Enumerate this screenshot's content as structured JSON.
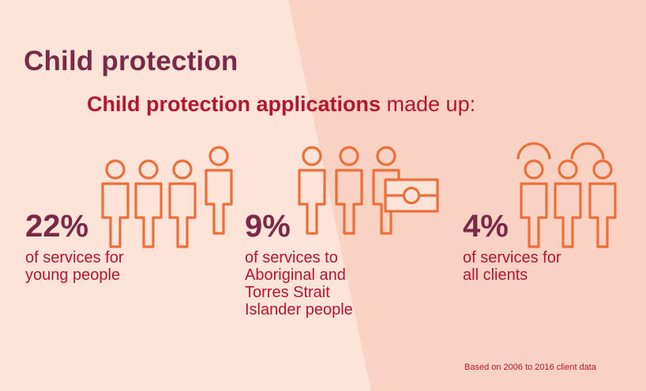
{
  "heading": "Child protection",
  "subheading": {
    "emphasis": "Child protection applications",
    "rest": " made up:"
  },
  "stats": [
    {
      "percent": "22%",
      "lines": [
        "of services for",
        "young people"
      ]
    },
    {
      "percent": "9%",
      "lines": [
        "of services to",
        "Aboriginal and",
        "Torres Strait",
        "Islander people"
      ]
    },
    {
      "percent": "4%",
      "lines": [
        "of services for",
        "all clients"
      ]
    }
  ],
  "footnote": "Based on 2006 to 2016 client data",
  "colors": {
    "background": "#fde3d8",
    "background_shape": "#f9d2c3",
    "heading": "#7a2a48",
    "accent_text": "#b3162d",
    "icon_stroke": "#ec6f3a"
  },
  "icons": [
    "person-icon",
    "aboriginal-flag-icon"
  ]
}
